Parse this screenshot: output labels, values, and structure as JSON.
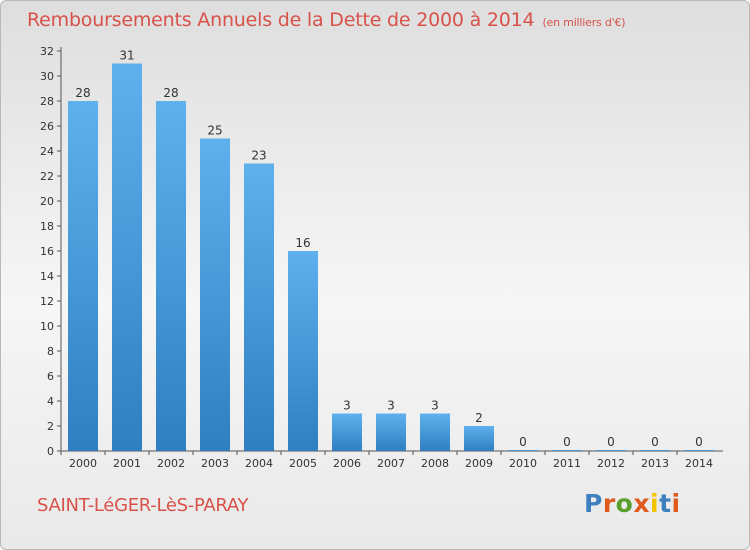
{
  "header": {
    "title": "Remboursements Annuels de la Dette de 2000 à 2014",
    "unit": "(en milliers d'€)"
  },
  "footer": {
    "commune": "SAINT-LéGER-LèS-PARAY",
    "logo_text": "Proxiti",
    "logo_colors": [
      "#3e7fbf",
      "#e05a1d",
      "#5aa02c",
      "#e05a1d",
      "#f2c400",
      "#3e7fbf",
      "#e05a1d"
    ]
  },
  "colors": {
    "bar_top": "#5eb1ec",
    "bar_bottom": "#2f7fc1",
    "axis": "#555555",
    "gridline": "#b0b0b0"
  },
  "chart_data": {
    "type": "bar",
    "title": "Remboursements Annuels de la Dette de 2000 à 2014",
    "subtitle": "(en milliers d'€)",
    "categories": [
      "2000",
      "2001",
      "2002",
      "2003",
      "2004",
      "2005",
      "2006",
      "2007",
      "2008",
      "2009",
      "2010",
      "2011",
      "2012",
      "2013",
      "2014"
    ],
    "values": [
      28,
      31,
      28,
      25,
      23,
      16,
      3,
      3,
      3,
      2,
      0,
      0,
      0,
      0,
      0
    ],
    "value_labels": [
      "28",
      "31",
      "28",
      "25",
      "23",
      "16",
      "3",
      "3",
      "3",
      "2",
      "0",
      "0",
      "0",
      "0",
      "0"
    ],
    "y_ticks": [
      "0",
      "2",
      "4",
      "6",
      "8",
      "10",
      "12",
      "14",
      "16",
      "18",
      "20",
      "22",
      "24",
      "26",
      "28",
      "30",
      "32"
    ],
    "ylim": [
      0,
      32
    ],
    "xlabel": "",
    "ylabel": "",
    "grid": false,
    "legend": "none"
  }
}
